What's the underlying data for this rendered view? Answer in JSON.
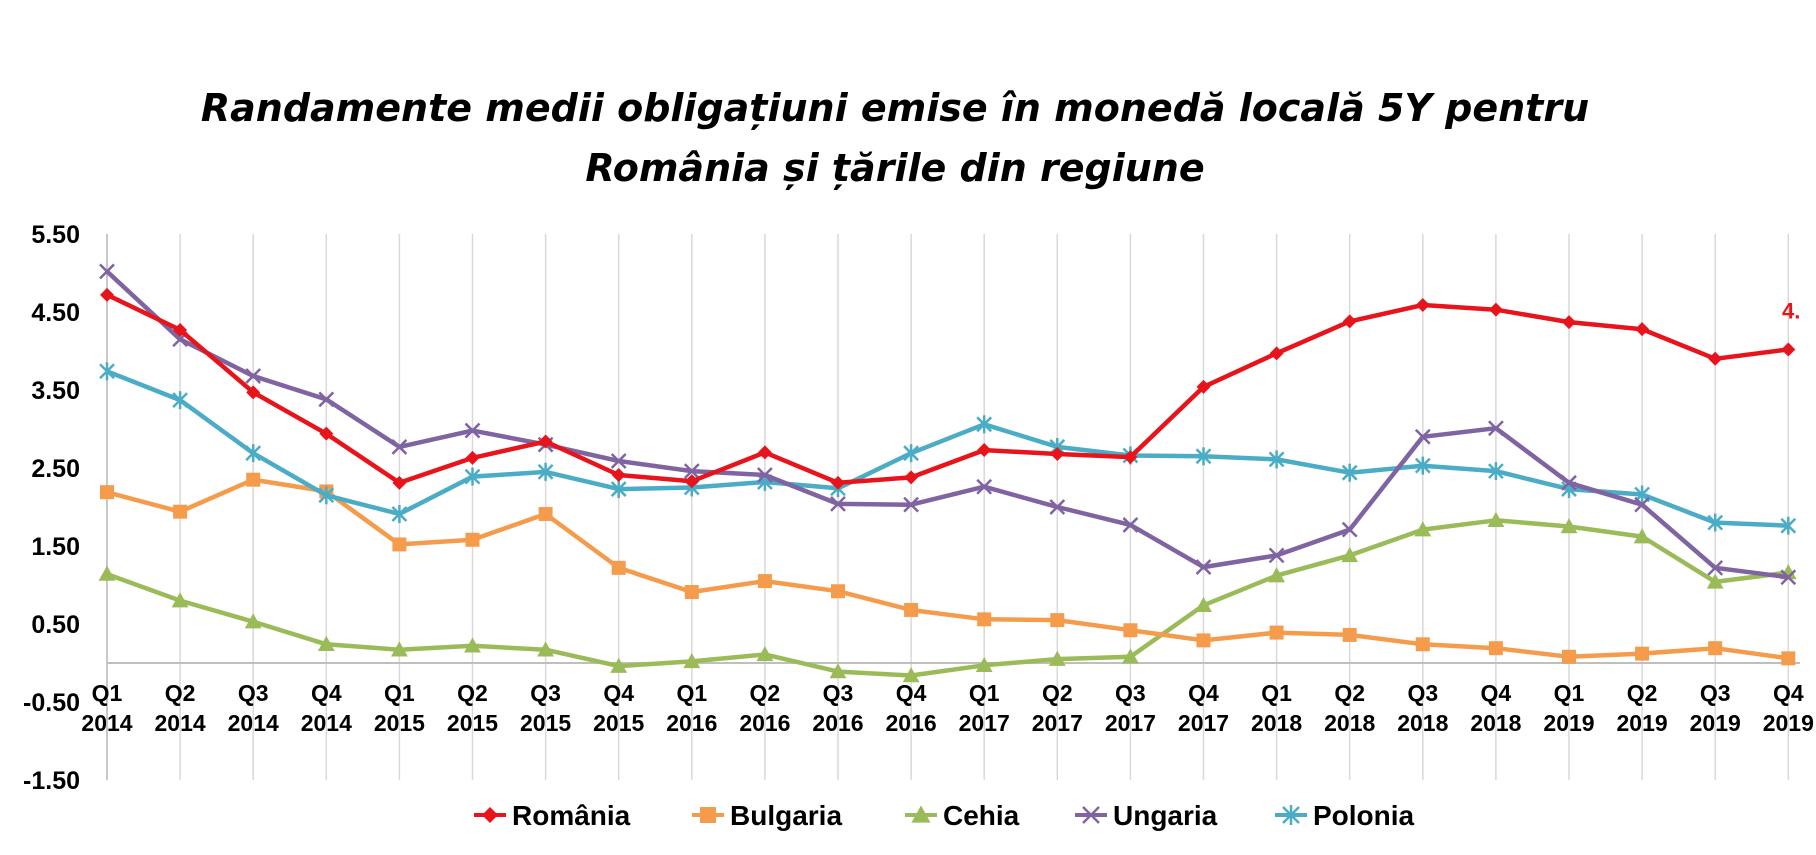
{
  "chart_data": {
    "type": "line",
    "title_line1": "Randamente medii obligațiuni emise în monedă locală 5Y pentru",
    "title_line2": "România și țările din regiune",
    "categories_quarter": [
      "Q1",
      "Q2",
      "Q3",
      "Q4",
      "Q1",
      "Q2",
      "Q3",
      "Q4",
      "Q1",
      "Q2",
      "Q3",
      "Q4",
      "Q1",
      "Q2",
      "Q3",
      "Q4",
      "Q1",
      "Q2",
      "Q3",
      "Q4",
      "Q1",
      "Q2",
      "Q3",
      "Q4"
    ],
    "categories_year": [
      "2014",
      "2014",
      "2014",
      "2014",
      "2015",
      "2015",
      "2015",
      "2015",
      "2016",
      "2016",
      "2016",
      "2016",
      "2017",
      "2017",
      "2017",
      "2017",
      "2018",
      "2018",
      "2018",
      "2018",
      "2019",
      "2019",
      "2019",
      "2019"
    ],
    "y_ticks": [
      "5.50",
      "4.50",
      "3.50",
      "2.50",
      "1.50",
      "0.50",
      "-0.50",
      "-1.50"
    ],
    "ylim": [
      -1.5,
      5.5
    ],
    "legend_position": "bottom",
    "series": [
      {
        "name": "România",
        "color": "#e8141b",
        "marker": "diamond",
        "values": [
          4.72,
          4.27,
          3.47,
          2.94,
          2.31,
          2.63,
          2.84,
          2.41,
          2.33,
          2.7,
          2.31,
          2.38,
          2.73,
          2.68,
          2.64,
          3.54,
          3.97,
          4.38,
          4.59,
          4.53,
          4.37,
          4.28,
          3.9,
          4.02
        ]
      },
      {
        "name": "Bulgaria",
        "color": "#f59c4c",
        "marker": "square",
        "values": [
          2.19,
          1.94,
          2.35,
          2.2,
          1.52,
          1.58,
          1.91,
          1.22,
          0.91,
          1.05,
          0.92,
          0.68,
          0.56,
          0.55,
          0.42,
          0.29,
          0.39,
          0.36,
          0.24,
          0.19,
          0.08,
          0.12,
          0.19,
          0.06
        ]
      },
      {
        "name": "Cehia",
        "color": "#9bbb59",
        "marker": "triangle",
        "values": [
          1.14,
          0.8,
          0.53,
          0.24,
          0.17,
          0.22,
          0.17,
          -0.04,
          0.02,
          0.11,
          -0.11,
          -0.16,
          -0.03,
          0.05,
          0.08,
          0.74,
          1.12,
          1.38,
          1.71,
          1.83,
          1.75,
          1.62,
          1.04,
          1.16
        ]
      },
      {
        "name": "Ungaria",
        "color": "#8064a2",
        "marker": "x",
        "values": [
          5.02,
          4.15,
          3.68,
          3.38,
          2.77,
          2.98,
          2.8,
          2.59,
          2.46,
          2.41,
          2.04,
          2.03,
          2.26,
          2.0,
          1.77,
          1.23,
          1.38,
          1.71,
          2.9,
          3.01,
          2.31,
          2.03,
          1.22,
          1.1
        ]
      },
      {
        "name": "Polonia",
        "color": "#4bacc6",
        "marker": "star",
        "values": [
          3.74,
          3.37,
          2.69,
          2.15,
          1.91,
          2.39,
          2.45,
          2.23,
          2.25,
          2.32,
          2.24,
          2.69,
          3.06,
          2.77,
          2.66,
          2.65,
          2.61,
          2.44,
          2.53,
          2.46,
          2.23,
          2.16,
          1.8,
          1.76
        ]
      }
    ],
    "annotations": [
      {
        "series": "România",
        "text": "4."
      }
    ]
  }
}
